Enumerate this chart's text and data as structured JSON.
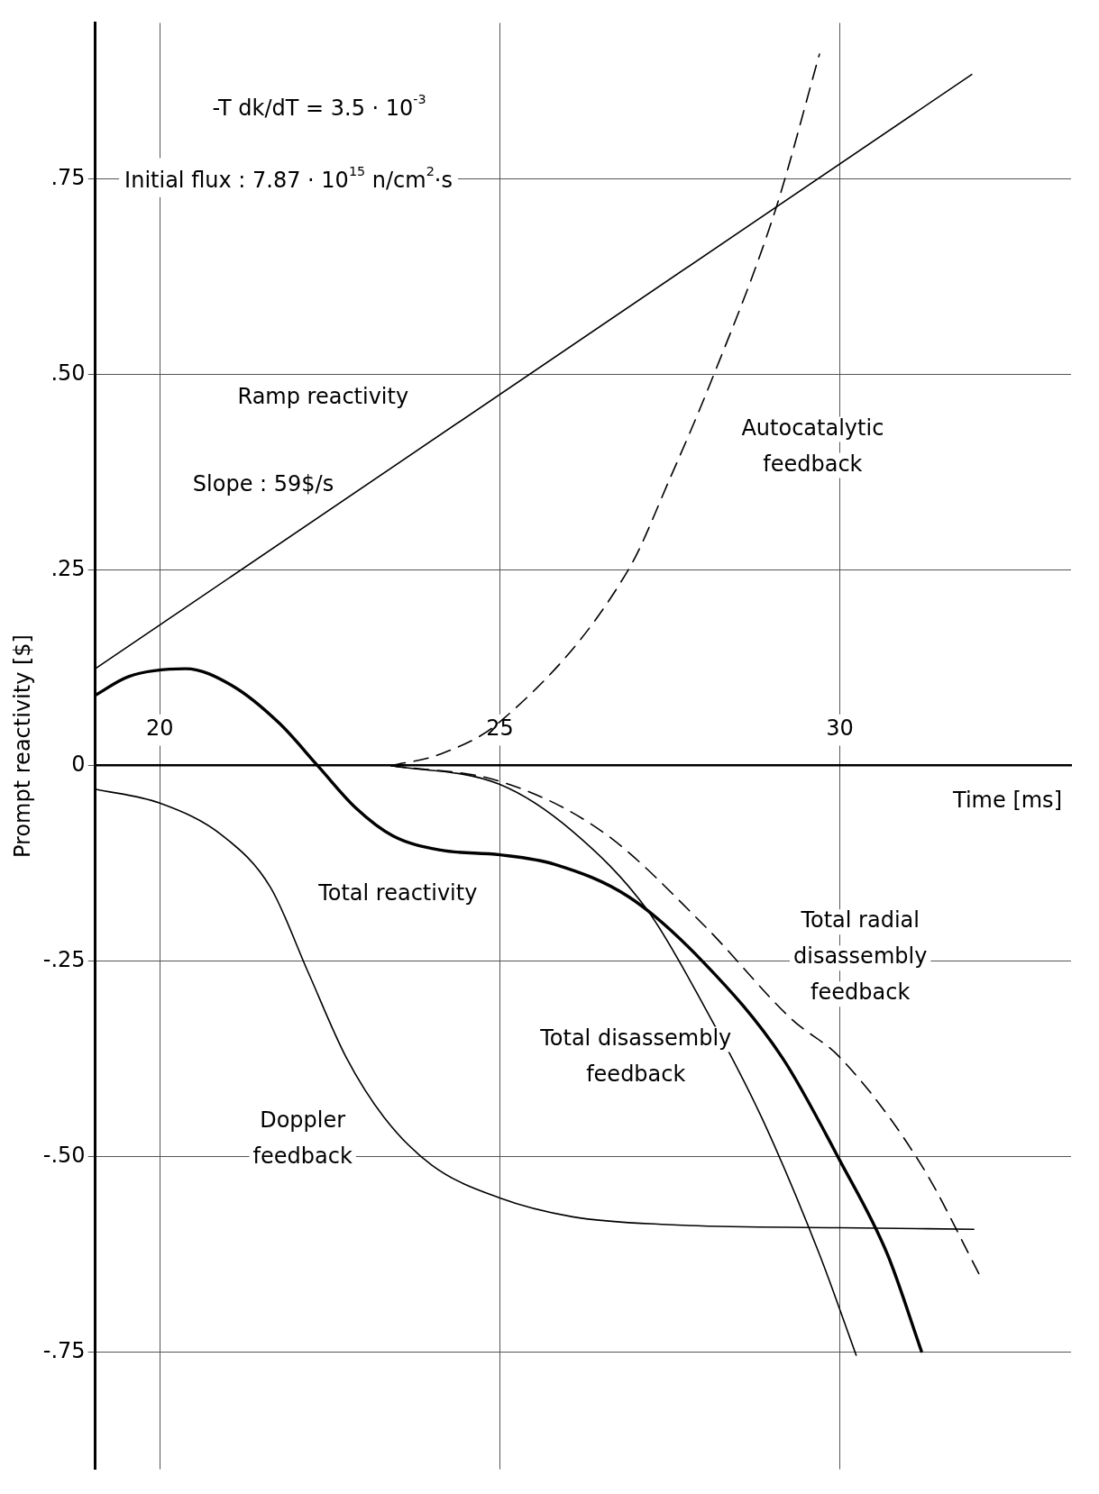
{
  "chart_data": {
    "type": "line",
    "xlabel": "Time [ms]",
    "ylabel": "Prompt reactivity [$]",
    "xlim": [
      19.05,
      33.4
    ],
    "ylim": [
      -0.9,
      0.95
    ],
    "xticks": [
      20,
      25,
      30
    ],
    "yticks": [
      {
        "value": -0.75,
        "label": "-.75"
      },
      {
        "value": -0.5,
        "label": "-.50"
      },
      {
        "value": -0.25,
        "label": "-.25"
      },
      {
        "value": 0,
        "label": "0"
      },
      {
        "value": 0.25,
        "label": ".25"
      },
      {
        "value": 0.5,
        "label": ".50"
      },
      {
        "value": 0.75,
        "label": ".75"
      }
    ],
    "grid": true,
    "legend": false,
    "marker": "none",
    "annotations": [
      "-T dk/dT = 3.5 · 10$^{-3}$",
      "Initial flux : 7.87 · 10$^{15}$ n/cm$^{2}$·s",
      "Slope : 59$/s"
    ],
    "series": [
      {
        "name": "Ramp reactivity",
        "color": "#000000",
        "line_style": "solid",
        "x": [
          19.05,
          31.94
        ],
        "values": [
          0.124,
          0.884
        ]
      },
      {
        "name": "Autocatalytic feedback",
        "color": "#000000",
        "line_style": "dashed",
        "x": [
          23.4,
          24.1,
          25,
          26.9,
          27.5,
          28.1,
          29.05,
          29.7
        ],
        "values": [
          0,
          0.014,
          0.056,
          0.252,
          0.367,
          0.49,
          0.71,
          0.91
        ]
      },
      {
        "name": "Total reactivity",
        "color": "#000000",
        "line_style": "solid",
        "x": [
          19.05,
          19.54,
          20.38,
          21.07,
          21.76,
          22.32,
          22.88,
          23.43,
          24.13,
          25,
          25.8,
          26.9,
          28,
          29.15,
          30,
          30.7,
          31.2
        ],
        "values": [
          0.09,
          0.114,
          0.124,
          0.102,
          0.054,
          0,
          -0.054,
          -0.09,
          -0.108,
          -0.114,
          -0.126,
          -0.168,
          -0.252,
          -0.373,
          -0.505,
          -0.625,
          -0.749
        ]
      },
      {
        "name": "Total radial disassembly feedback",
        "color": "#000000",
        "line_style": "dashed",
        "x": [
          23.4,
          25,
          26.5,
          28,
          29.3,
          30,
          31.2,
          32.1
        ],
        "values": [
          0,
          -0.02,
          -0.084,
          -0.204,
          -0.325,
          -0.373,
          -0.511,
          -0.659
        ]
      },
      {
        "name": "Total disassembly feedback",
        "color": "#000000",
        "line_style": "solid",
        "x": [
          23.4,
          25,
          26.07,
          27.18,
          28,
          28.85,
          29.7,
          30.24
        ],
        "values": [
          0,
          -0.024,
          -0.084,
          -0.186,
          -0.307,
          -0.45,
          -0.625,
          -0.754
        ]
      },
      {
        "name": "Doppler feedback",
        "color": "#000000",
        "line_style": "solid",
        "x": [
          19.05,
          20,
          20.93,
          21.63,
          22.18,
          22.74,
          23.3,
          24,
          25,
          26.07,
          27.46,
          30,
          31.97
        ],
        "values": [
          -0.03,
          -0.048,
          -0.09,
          -0.156,
          -0.264,
          -0.373,
          -0.45,
          -0.511,
          -0.553,
          -0.577,
          -0.587,
          -0.591,
          -0.593
        ]
      }
    ]
  }
}
